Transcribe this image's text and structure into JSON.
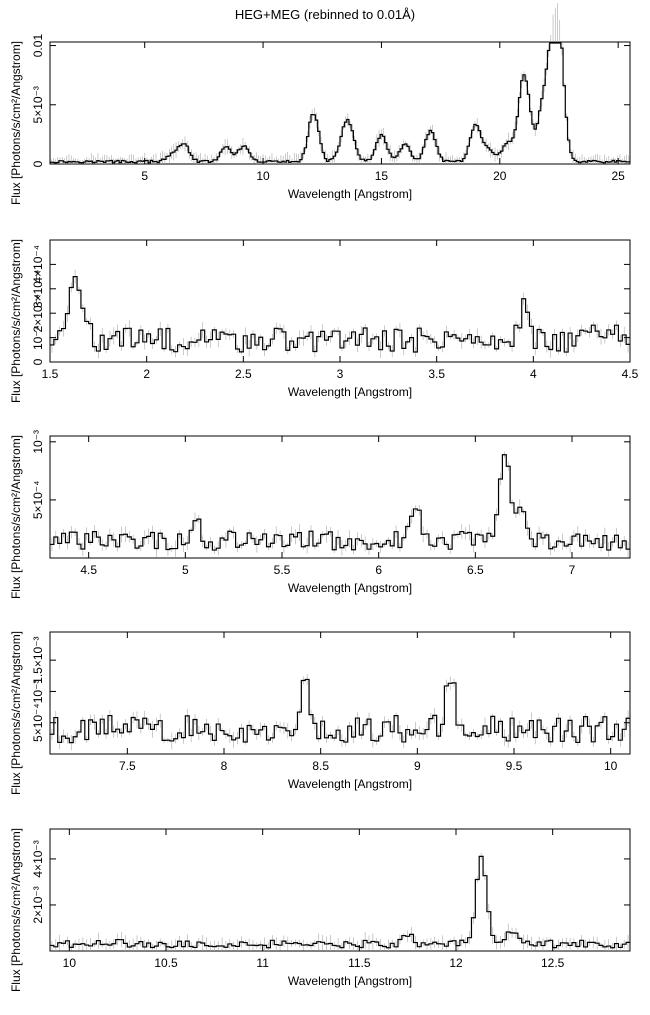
{
  "title": "HEG+MEG (rebinned to 0.01Å)",
  "chart_data": [
    {
      "type": "line",
      "xlabel": "Wavelength [Angstrom]",
      "ylabel": "Flux [Photons/s/cm²/Angstrom]",
      "xlim": [
        1.0,
        25.5
      ],
      "ylim": [
        0,
        0.0103
      ],
      "xticks": [
        5,
        10,
        15,
        20,
        25
      ],
      "xtick_labels": [
        "5",
        "10",
        "15",
        "20",
        "25"
      ],
      "yticks": [
        0,
        0.005,
        0.01
      ],
      "ytick_labels": [
        "0",
        "5×10⁻³",
        "0.01"
      ],
      "grid": false,
      "baseline": 0.0002,
      "peaks": [
        [
          6.18,
          0.0008
        ],
        [
          6.65,
          0.0017
        ],
        [
          8.42,
          0.0014
        ],
        [
          9.17,
          0.0015
        ],
        [
          12.13,
          0.0043
        ],
        [
          13.45,
          0.0025
        ],
        [
          13.7,
          0.002
        ],
        [
          15.01,
          0.0025
        ],
        [
          16.0,
          0.0016
        ],
        [
          17.07,
          0.0028
        ],
        [
          18.97,
          0.0032
        ],
        [
          19.5,
          0.0012
        ],
        [
          20.3,
          0.0017
        ],
        [
          20.9,
          0.0032
        ],
        [
          21.1,
          0.0052
        ],
        [
          21.8,
          0.0043
        ],
        [
          22.2,
          0.0074
        ],
        [
          22.5,
          0.01
        ]
      ]
    },
    {
      "type": "line",
      "xlabel": "Wavelength [Angstrom]",
      "ylabel": "Flux [Photons/s/cm²/Angstrom]",
      "xlim": [
        1.5,
        4.5
      ],
      "ylim": [
        0,
        0.0005
      ],
      "xticks": [
        1.5,
        2,
        2.5,
        3,
        3.5,
        4,
        4.5
      ],
      "xtick_labels": [
        "1.5",
        "2",
        "2.5",
        "3",
        "3.5",
        "4",
        "4.5"
      ],
      "yticks": [
        0,
        0.0001,
        0.0002,
        0.0003,
        0.0004
      ],
      "ytick_labels": [
        "0",
        "10⁻⁴",
        "2×10⁻⁴",
        "3×10⁻⁴",
        "4×10⁻⁴"
      ],
      "grid": false,
      "baseline": 9e-05,
      "peaks": [
        [
          1.63,
          0.00028
        ],
        [
          1.66,
          0.00018
        ],
        [
          1.58,
          0.00012
        ],
        [
          3.95,
          0.00022
        ],
        [
          4.3,
          0.00014
        ],
        [
          4.45,
          0.00012
        ]
      ]
    },
    {
      "type": "line",
      "xlabel": "Wavelength [Angstrom]",
      "ylabel": "Flux [Photons/s/cm²/Angstrom]",
      "xlim": [
        4.3,
        7.3
      ],
      "ylim": [
        0,
        0.00105
      ],
      "xticks": [
        4.5,
        5,
        5.5,
        6,
        6.5,
        7
      ],
      "xtick_labels": [
        "4.5",
        "5",
        "5.5",
        "6",
        "6.5",
        "7"
      ],
      "yticks": [
        0.0005,
        0.001
      ],
      "ytick_labels": [
        "5×10⁻⁴",
        "10⁻³"
      ],
      "grid": false,
      "baseline": 0.00015,
      "peaks": [
        [
          5.05,
          0.0003
        ],
        [
          6.2,
          0.0004
        ],
        [
          6.65,
          0.00092
        ],
        [
          6.74,
          0.00048
        ]
      ]
    },
    {
      "type": "line",
      "xlabel": "Wavelength [Angstrom]",
      "ylabel": "Flux [Photons/s/cm²/Angstrom]",
      "xlim": [
        7.1,
        10.1
      ],
      "ylim": [
        0,
        0.00195
      ],
      "xticks": [
        7.5,
        8,
        8.5,
        9,
        9.5,
        10
      ],
      "xtick_labels": [
        "7.5",
        "8",
        "8.5",
        "9",
        "9.5",
        "10"
      ],
      "yticks": [
        0.0005,
        0.001,
        0.0015
      ],
      "ytick_labels": [
        "5×10⁻⁴",
        "10⁻³",
        "1.5×10⁻³"
      ],
      "grid": false,
      "baseline": 0.0004,
      "peaks": [
        [
          7.85,
          0.00035
        ],
        [
          8.42,
          0.0011
        ],
        [
          9.17,
          0.00115
        ],
        [
          9.23,
          0.0004
        ],
        [
          9.3,
          0.0005
        ]
      ]
    },
    {
      "type": "line",
      "xlabel": "Wavelength [Angstrom]",
      "ylabel": "Flux [Photons/s/cm²/Angstrom]",
      "xlim": [
        9.9,
        12.9
      ],
      "ylim": [
        0,
        0.0053
      ],
      "xticks": [
        10,
        10.5,
        11,
        11.5,
        12,
        12.5
      ],
      "xtick_labels": [
        "10",
        "10.5",
        "11",
        "11.5",
        "12",
        "12.5"
      ],
      "yticks": [
        0.002,
        0.004
      ],
      "ytick_labels": [
        "2×10⁻³",
        "4×10⁻³"
      ],
      "grid": false,
      "baseline": 0.0003,
      "peaks": [
        [
          10.24,
          0.0004
        ],
        [
          11.75,
          0.0008
        ],
        [
          12.13,
          0.0041
        ],
        [
          12.28,
          0.0009
        ]
      ]
    }
  ]
}
